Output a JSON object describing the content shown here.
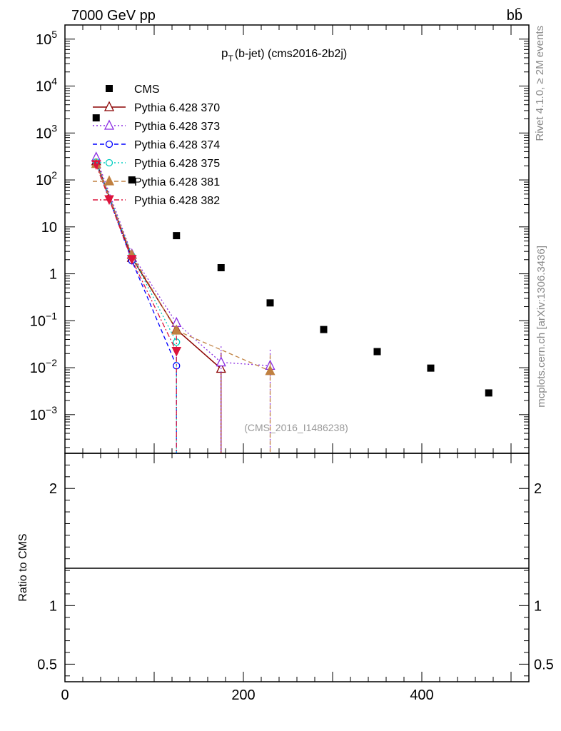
{
  "header": {
    "left": "7000 GeV pp",
    "right": "bb̄"
  },
  "side_labels": {
    "rivet": "Rivet 4.1.0, ≥ 2M events",
    "mcplots": "mcplots.cern.ch [arXiv:1306.3436]"
  },
  "colors": {
    "cms": "#000000",
    "p370": "#8b0000",
    "p373": "#8a2be2",
    "p374": "#0000ff",
    "p375": "#00cdc0",
    "p381": "#c08040",
    "p382": "#dc143c"
  },
  "chart_data": {
    "type": "line",
    "title": "p_T(b-jet) (cms2016-2b2j)",
    "title_main": "p",
    "title_sub": "T",
    "title_rest": "(b-jet) (cms2016-2b2j)",
    "watermark": "(CMS_2016_I1486238)",
    "xlabel": "",
    "ylabel": "",
    "ratio_ylabel": "Ratio to CMS",
    "xlim": [
      0,
      520
    ],
    "ylim_log": [
      0.00015,
      200000
    ],
    "ratio_ylim": [
      0.35,
      2.3
    ],
    "x_ticks": [
      "0",
      "200",
      "400"
    ],
    "x_tick_values": [
      0,
      200,
      400
    ],
    "y_ticks": [
      "10^-3",
      "10^-2",
      "10^-1",
      "1",
      "10",
      "10^2",
      "10^3",
      "10^4",
      "10^5"
    ],
    "ratio_ticks": [
      "0.5",
      "1",
      "2"
    ],
    "ratio_tick_values": [
      0.5,
      1,
      2
    ],
    "series": [
      {
        "name": "CMS",
        "style": "data",
        "marker": "square",
        "color_key": "cms",
        "x": [
          35,
          75,
          125,
          175,
          230,
          290,
          350,
          410,
          475
        ],
        "values": [
          2100,
          100,
          6.5,
          1.35,
          0.24,
          0.065,
          0.022,
          0.0098,
          0.0029
        ]
      },
      {
        "name": "Pythia 6.428 370",
        "style": "solid",
        "marker": "triangle-open",
        "color_key": "p370",
        "x": [
          35,
          75,
          125,
          175
        ],
        "values": [
          250,
          2.2,
          0.065,
          0.0095
        ]
      },
      {
        "name": "Pythia 6.428 373",
        "style": "dotted",
        "marker": "triangle-open",
        "color_key": "p373",
        "x": [
          35,
          75,
          125,
          175,
          230
        ],
        "values": [
          300,
          2.6,
          0.09,
          0.013,
          0.011
        ]
      },
      {
        "name": "Pythia 6.428 374",
        "style": "dashed",
        "marker": "circle-open",
        "color_key": "p374",
        "x": [
          35,
          75,
          125
        ],
        "values": [
          230,
          1.9,
          0.011
        ]
      },
      {
        "name": "Pythia 6.428 375",
        "style": "dotted",
        "marker": "circle-open",
        "color_key": "p375",
        "x": [
          35,
          75,
          125
        ],
        "values": [
          240,
          2.4,
          0.035
        ]
      },
      {
        "name": "Pythia 6.428 381",
        "style": "dashed",
        "marker": "triangle-filled",
        "color_key": "p381",
        "x": [
          35,
          75,
          125,
          230
        ],
        "values": [
          220,
          2.5,
          0.062,
          0.0085
        ]
      },
      {
        "name": "Pythia 6.428 382",
        "style": "dashdot",
        "marker": "triangle-down-filled",
        "color_key": "p382",
        "x": [
          35,
          75,
          125
        ],
        "values": [
          210,
          2.0,
          0.022
        ]
      }
    ]
  }
}
